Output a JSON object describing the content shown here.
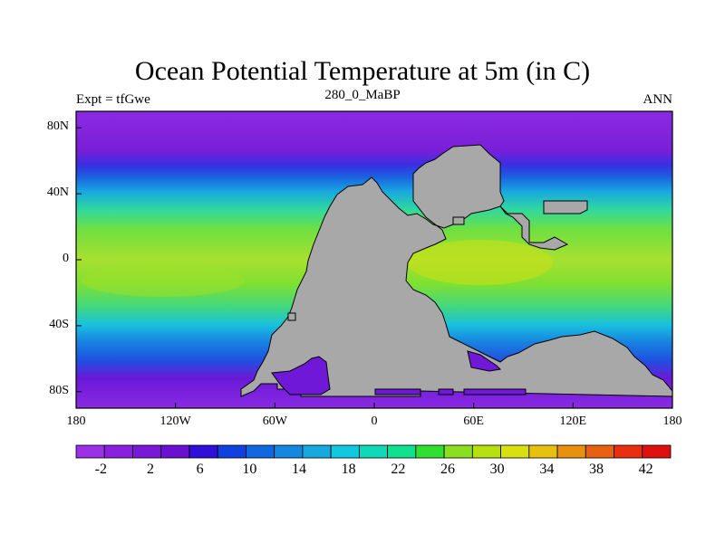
{
  "title": "Ocean Potential Temperature at 5m (in C)",
  "subtitle_left": "Expt = tfGwe",
  "subtitle_center": "280_0_MaBP",
  "subtitle_right": "ANN",
  "map": {
    "lon_range": [
      -180,
      180
    ],
    "lat_range": [
      -90,
      90
    ],
    "land_color": "#a8a8a8",
    "y_ticks": [
      {
        "label": "80N",
        "lat": 80
      },
      {
        "label": "40N",
        "lat": 40
      },
      {
        "label": "0",
        "lat": 0
      },
      {
        "label": "40S",
        "lat": -40
      },
      {
        "label": "80S",
        "lat": -80
      }
    ],
    "x_ticks": [
      {
        "label": "180",
        "lon": -180
      },
      {
        "label": "120W",
        "lon": -120
      },
      {
        "label": "60W",
        "lon": -60
      },
      {
        "label": "0",
        "lon": 0
      },
      {
        "label": "60E",
        "lon": 60
      },
      {
        "label": "120E",
        "lon": 120
      },
      {
        "label": "180",
        "lon": 180
      }
    ]
  },
  "colorbar": {
    "colors": [
      "#9b30e6",
      "#8a1fe0",
      "#7a18d8",
      "#6a10d0",
      "#3010d8",
      "#1040e0",
      "#1068e0",
      "#1488e0",
      "#18a8e0",
      "#10c8e0",
      "#10d8b8",
      "#10e090",
      "#30e030",
      "#88e020",
      "#b8e010",
      "#d8e010",
      "#e8c010",
      "#e89010",
      "#e86010",
      "#e83010",
      "#e01010"
    ],
    "tick_labels": [
      "-2",
      "2",
      "6",
      "10",
      "14",
      "18",
      "22",
      "26",
      "30",
      "34",
      "38",
      "42"
    ],
    "tick_values": [
      -2,
      2,
      6,
      10,
      14,
      18,
      22,
      26,
      30,
      34,
      38,
      42
    ],
    "range": [
      -4,
      44
    ]
  }
}
